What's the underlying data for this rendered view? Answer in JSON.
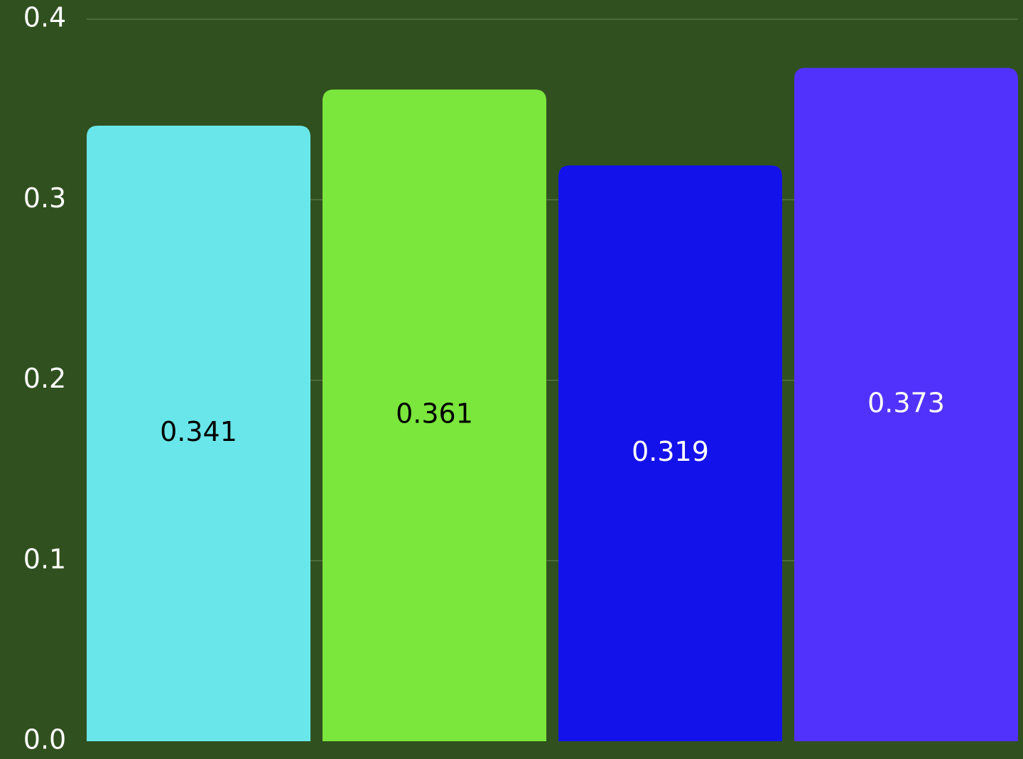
{
  "chart_data": {
    "type": "bar",
    "title": "",
    "xlabel": "",
    "ylabel": "",
    "ylim": [
      0,
      0.4
    ],
    "yticks": [
      {
        "value": 0.0,
        "label": "0.0"
      },
      {
        "value": 0.1,
        "label": "0.1"
      },
      {
        "value": 0.2,
        "label": "0.2"
      },
      {
        "value": 0.3,
        "label": "0.3"
      },
      {
        "value": 0.4,
        "label": "0.4"
      }
    ],
    "grid": true,
    "bars": [
      {
        "value": 0.341,
        "label": "0.341",
        "color": "#69e6e9",
        "label_color": "#000000"
      },
      {
        "value": 0.361,
        "label": "0.361",
        "color": "#7be63c",
        "label_color": "#000000"
      },
      {
        "value": 0.319,
        "label": "0.319",
        "color": "#1412ea",
        "label_color": "#ffffff"
      },
      {
        "value": 0.373,
        "label": "0.373",
        "color": "#5132fd",
        "label_color": "#ffffff"
      }
    ]
  },
  "colors": {
    "background": "#30511f",
    "gridline": "#5e7a4f",
    "axis_text": "#ffffff"
  }
}
